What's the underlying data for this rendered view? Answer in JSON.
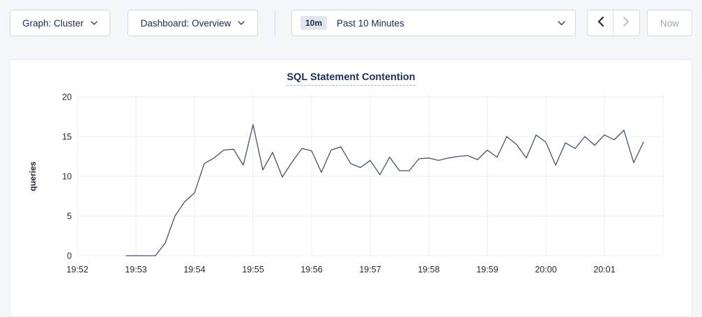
{
  "toolbar": {
    "graph_dropdown_label": "Graph: Cluster",
    "dashboard_dropdown_label": "Dashboard: Overview",
    "time_range": {
      "badge": "10m",
      "selected": "Past 10 Minutes"
    },
    "nav": {
      "now_label": "Now",
      "prev_enabled": true,
      "next_enabled": false,
      "now_enabled": false
    },
    "icons": {
      "graph_dropdown": "chevron-down-icon",
      "dashboard_dropdown": "chevron-down-icon",
      "time_range": "chevron-down-icon",
      "prev": "chevron-left-icon",
      "next": "chevron-right-icon"
    }
  },
  "chart_data": {
    "type": "line",
    "title": "SQL Statement Contention",
    "xlabel": "",
    "ylabel": "queries",
    "ylim": [
      0,
      20
    ],
    "yticks": [
      0,
      5,
      10,
      15,
      20
    ],
    "x_tick_labels": [
      "19:52",
      "19:53",
      "19:54",
      "19:55",
      "19:56",
      "19:57",
      "19:58",
      "19:59",
      "20:00",
      "20:01"
    ],
    "grid": true,
    "legend_position": "none",
    "first_sample_offset_seconds": 50,
    "sample_interval_seconds": 10,
    "series": [
      {
        "name": "SQL Statement Contention",
        "color": "#44506e",
        "values": [
          0,
          0,
          0,
          0,
          1.6,
          5,
          6.8,
          7.9,
          11.6,
          12.3,
          13.3,
          13.4,
          11.4,
          16.5,
          10.8,
          13,
          9.9,
          11.8,
          13.5,
          13.2,
          10.5,
          13.3,
          13.7,
          11.6,
          11.1,
          12,
          10.2,
          12.4,
          10.7,
          10.7,
          12.2,
          12.3,
          12,
          12.3,
          12.5,
          12.6,
          12.1,
          13.3,
          12.4,
          15,
          14,
          12.3,
          15.2,
          14.3,
          11.4,
          14.2,
          13.5,
          15,
          13.9,
          15.2,
          14.6,
          15.8,
          11.7,
          14.3
        ]
      }
    ],
    "colors": {
      "grid": "#eaecf1",
      "tick_text": "#26292e"
    }
  }
}
